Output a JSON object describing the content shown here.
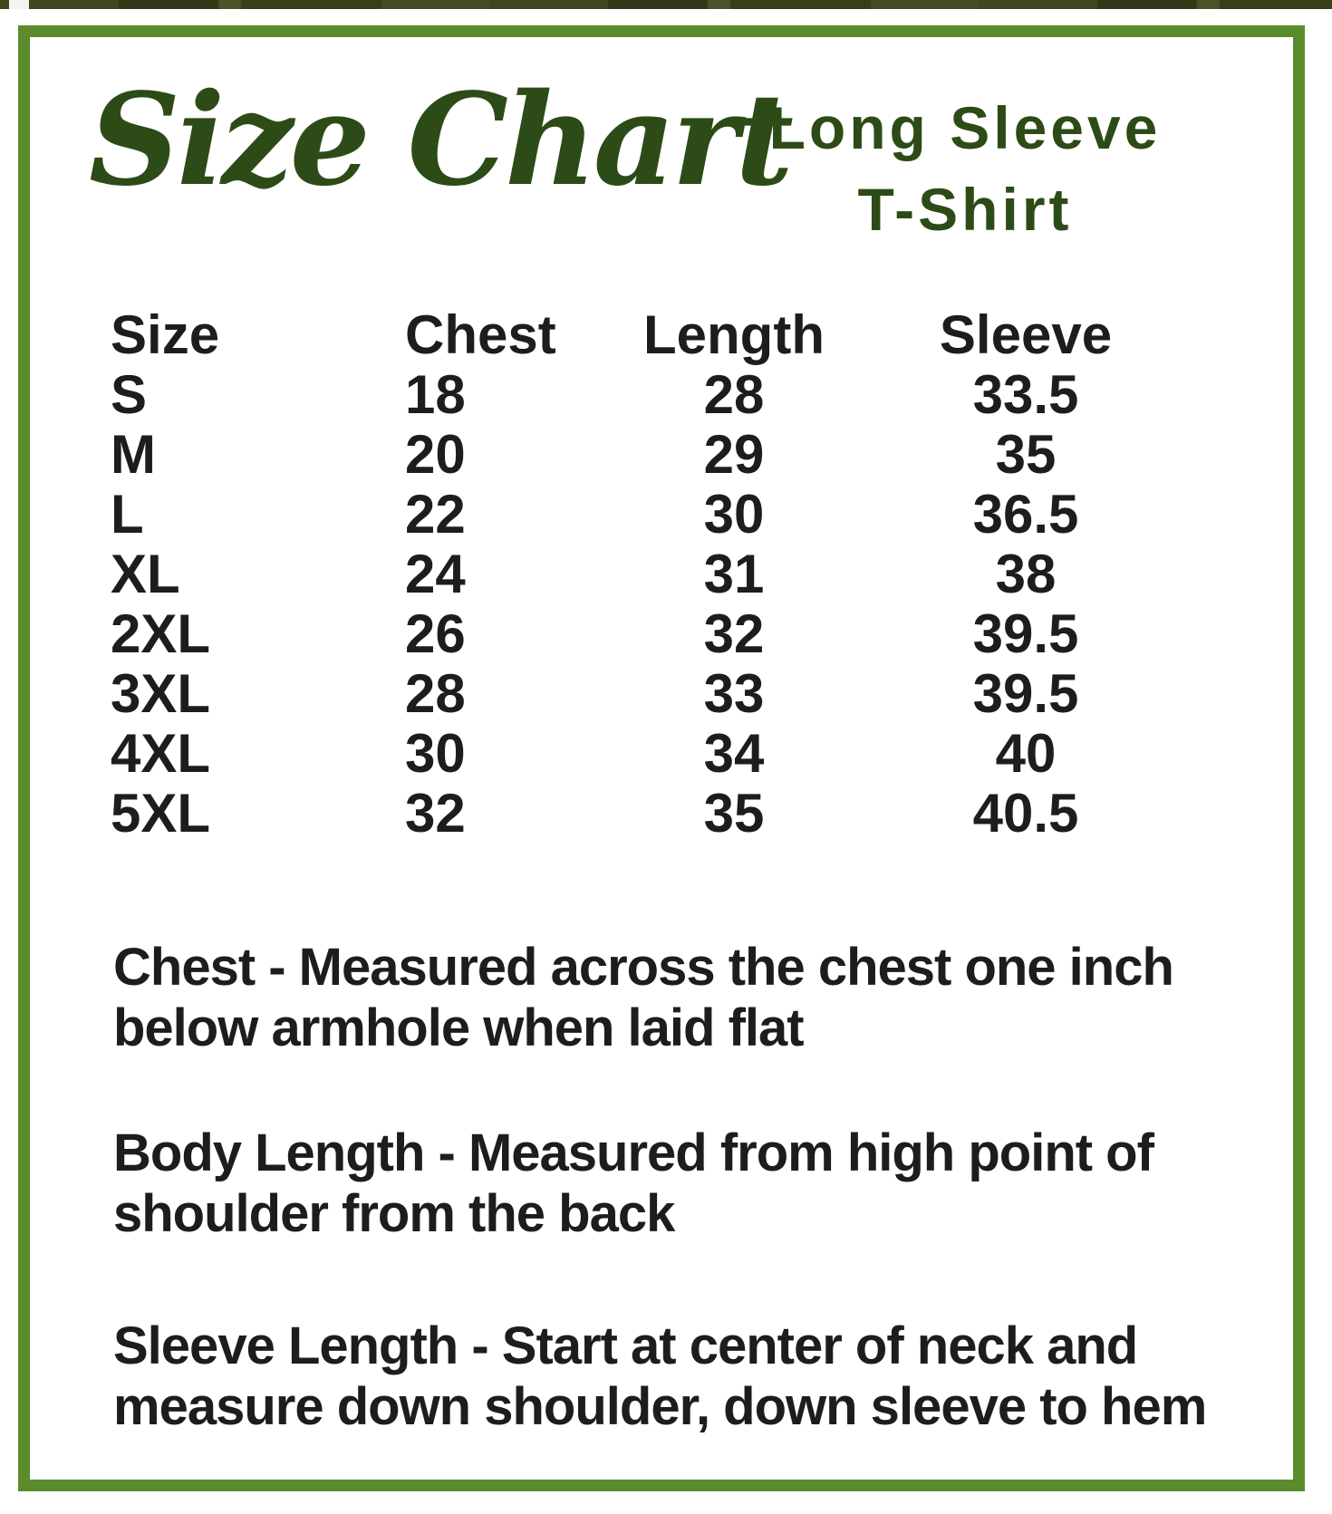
{
  "page": {
    "background": "#ffffff",
    "border_color": "#5a8b2c",
    "accent_green": "#2d4b16",
    "text_color": "#1d1d1d"
  },
  "header": {
    "title": "Size Chart",
    "product": [
      "Long Sleeve",
      "T-Shirt"
    ]
  },
  "table": {
    "columns": [
      "Size",
      "Chest",
      "Length",
      "Sleeve"
    ],
    "rows": [
      {
        "size": "S",
        "chest": "18",
        "length": "28",
        "sleeve": "33.5"
      },
      {
        "size": "M",
        "chest": "20",
        "length": "29",
        "sleeve": "35"
      },
      {
        "size": "L",
        "chest": "22",
        "length": "30",
        "sleeve": "36.5"
      },
      {
        "size": "XL",
        "chest": "24",
        "length": "31",
        "sleeve": "38"
      },
      {
        "size": "2XL",
        "chest": "26",
        "length": "32",
        "sleeve": "39.5"
      },
      {
        "size": "3XL",
        "chest": "28",
        "length": "33",
        "sleeve": "39.5"
      },
      {
        "size": "4XL",
        "chest": "30",
        "length": "34",
        "sleeve": "40"
      },
      {
        "size": "5XL",
        "chest": "32",
        "length": "35",
        "sleeve": "40.5"
      }
    ]
  },
  "notes": [
    {
      "lines": [
        "Chest - Measured across the chest one inch",
        "below armhole when laid flat"
      ]
    },
    {
      "lines": [
        "Body Length - Measured from high point of",
        "shoulder from the back"
      ]
    },
    {
      "lines": [
        "Sleeve Length - Start at center of neck and",
        "measure down shoulder, down sleeve to hem"
      ]
    }
  ]
}
